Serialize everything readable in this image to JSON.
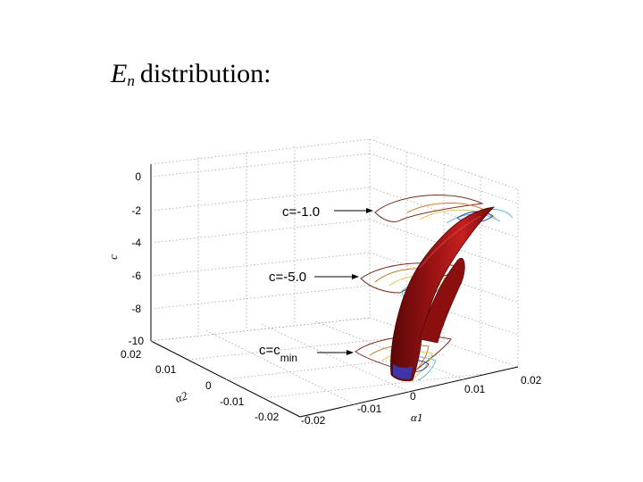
{
  "title": {
    "symbol": "E",
    "symbol_sub": "n",
    "text": "distribution:"
  },
  "chart_data": {
    "type": "surface",
    "z_label": "c",
    "x_label": "α1",
    "y_label": "α2",
    "z_ticks": [
      "0",
      "-2",
      "-4",
      "-6",
      "-8",
      "-10"
    ],
    "x_ticks": [
      "-0.02",
      "-0.01",
      "0",
      "0.01",
      "0.02"
    ],
    "y_ticks": [
      "0.02",
      "0.01",
      "0",
      "-0.01",
      "-0.02"
    ],
    "zlim": [
      -10,
      0
    ],
    "xlim": [
      -0.02,
      0.02
    ],
    "ylim": [
      -0.02,
      0.02
    ],
    "grid": true,
    "surface_color": "#8b1010",
    "contour_colors": [
      "#c77b2a",
      "#e0c84a",
      "#5fb8e0",
      "#2a3fb0",
      "#7a2a1a"
    ],
    "annotations": [
      {
        "text": "c=-1.0",
        "sub": ""
      },
      {
        "text": "c=-5.0",
        "sub": ""
      },
      {
        "text": "c=c",
        "sub": "min"
      }
    ]
  }
}
